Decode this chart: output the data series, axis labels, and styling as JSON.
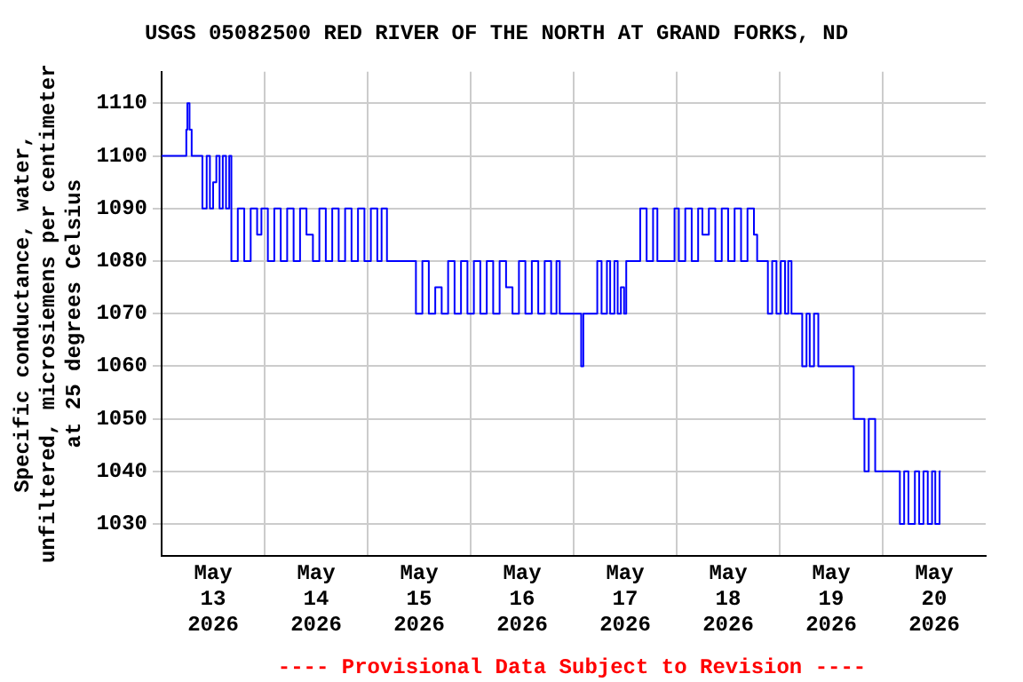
{
  "chart_data": {
    "type": "step",
    "title": "USGS 05082500 RED RIVER OF THE NORTH AT GRAND FORKS, ND",
    "ylabel": "Specific conductance, water,\nunfiltered, microsiemens per centimeter\nat 25 degrees Celsius",
    "annotations": [
      "---- Provisional Data Subject to Revision ----"
    ],
    "xlim": [
      "2026-05-13T00:00",
      "2026-05-21T00:00"
    ],
    "xticks": [
      {
        "value": "2026-05-13T12:00",
        "label": "May\n13\n2026"
      },
      {
        "value": "2026-05-14T00:00",
        "label": null
      },
      {
        "value": "2026-05-14T12:00",
        "label": "May\n14\n2026"
      },
      {
        "value": "2026-05-15T00:00",
        "label": null
      },
      {
        "value": "2026-05-15T12:00",
        "label": "May\n15\n2026"
      },
      {
        "value": "2026-05-16T00:00",
        "label": null
      },
      {
        "value": "2026-05-16T12:00",
        "label": "May\n16\n2026"
      },
      {
        "value": "2026-05-17T00:00",
        "label": null
      },
      {
        "value": "2026-05-17T12:00",
        "label": "May\n17\n2026"
      },
      {
        "value": "2026-05-18T00:00",
        "label": null
      },
      {
        "value": "2026-05-18T12:00",
        "label": "May\n18\n2026"
      },
      {
        "value": "2026-05-19T00:00",
        "label": null
      },
      {
        "value": "2026-05-19T12:00",
        "label": "May\n19\n2026"
      },
      {
        "value": "2026-05-20T00:00",
        "label": null
      },
      {
        "value": "2026-05-20T12:00",
        "label": "May\n20\n2026"
      }
    ],
    "ylim": [
      1024,
      1116
    ],
    "yticks": [
      1030,
      1040,
      1050,
      1060,
      1070,
      1080,
      1090,
      1100,
      1110
    ],
    "grid": true,
    "legend": false,
    "marker": "none",
    "line_style": "solid",
    "series": [
      {
        "color": "#0000ff",
        "x": [
          "2026-05-13T00:00",
          "2026-05-13T05:45",
          "2026-05-13T06:00",
          "2026-05-13T06:30",
          "2026-05-13T07:00",
          "2026-05-13T09:30",
          "2026-05-13T10:30",
          "2026-05-13T11:15",
          "2026-05-13T12:00",
          "2026-05-13T12:45",
          "2026-05-13T13:30",
          "2026-05-13T14:15",
          "2026-05-13T15:00",
          "2026-05-13T15:45",
          "2026-05-13T16:15",
          "2026-05-13T17:45",
          "2026-05-13T19:15",
          "2026-05-13T20:45",
          "2026-05-13T22:15",
          "2026-05-13T23:15",
          "2026-05-14T00:45",
          "2026-05-14T02:15",
          "2026-05-14T03:45",
          "2026-05-14T05:15",
          "2026-05-14T06:45",
          "2026-05-14T08:15",
          "2026-05-14T09:45",
          "2026-05-14T11:15",
          "2026-05-14T12:45",
          "2026-05-14T14:15",
          "2026-05-14T15:45",
          "2026-05-14T17:15",
          "2026-05-14T18:45",
          "2026-05-14T20:15",
          "2026-05-14T21:45",
          "2026-05-14T23:15",
          "2026-05-15T00:45",
          "2026-05-15T02:15",
          "2026-05-15T03:15",
          "2026-05-15T04:30",
          "2026-05-15T11:15",
          "2026-05-15T12:45",
          "2026-05-15T14:15",
          "2026-05-15T15:45",
          "2026-05-15T17:15",
          "2026-05-15T18:45",
          "2026-05-15T20:15",
          "2026-05-15T21:45",
          "2026-05-15T23:15",
          "2026-05-16T00:45",
          "2026-05-16T02:15",
          "2026-05-16T03:45",
          "2026-05-16T05:15",
          "2026-05-16T06:45",
          "2026-05-16T08:15",
          "2026-05-16T09:45",
          "2026-05-16T11:15",
          "2026-05-16T12:45",
          "2026-05-16T14:15",
          "2026-05-16T15:45",
          "2026-05-16T17:15",
          "2026-05-16T18:45",
          "2026-05-16T20:00",
          "2026-05-16T20:45",
          "2026-05-17T01:45",
          "2026-05-17T02:15",
          "2026-05-17T05:30",
          "2026-05-17T06:30",
          "2026-05-17T07:45",
          "2026-05-17T08:30",
          "2026-05-17T09:30",
          "2026-05-17T10:15",
          "2026-05-17T11:00",
          "2026-05-17T11:45",
          "2026-05-17T12:15",
          "2026-05-17T15:30",
          "2026-05-17T17:00",
          "2026-05-17T18:30",
          "2026-05-17T19:30",
          "2026-05-17T23:30",
          "2026-05-18T00:30",
          "2026-05-18T02:00",
          "2026-05-18T03:30",
          "2026-05-18T05:00",
          "2026-05-18T06:00",
          "2026-05-18T07:30",
          "2026-05-18T09:00",
          "2026-05-18T10:30",
          "2026-05-18T12:00",
          "2026-05-18T13:30",
          "2026-05-18T15:00",
          "2026-05-18T16:30",
          "2026-05-18T18:00",
          "2026-05-18T18:45",
          "2026-05-18T21:15",
          "2026-05-18T22:15",
          "2026-05-18T23:15",
          "2026-05-19T00:15",
          "2026-05-19T01:15",
          "2026-05-19T02:00",
          "2026-05-19T02:45",
          "2026-05-19T05:15",
          "2026-05-19T06:15",
          "2026-05-19T07:00",
          "2026-05-19T08:00",
          "2026-05-19T09:00",
          "2026-05-19T17:15",
          "2026-05-19T19:45",
          "2026-05-19T20:45",
          "2026-05-19T22:15",
          "2026-05-20T04:00",
          "2026-05-20T05:00",
          "2026-05-20T06:00",
          "2026-05-20T07:30",
          "2026-05-20T08:30",
          "2026-05-20T09:30",
          "2026-05-20T10:30",
          "2026-05-20T11:30",
          "2026-05-20T12:15",
          "2026-05-20T13:15",
          "2026-05-20T13:30"
        ],
        "values": [
          1100,
          1105,
          1110,
          1105,
          1100,
          1090,
          1100,
          1090,
          1095,
          1100,
          1090,
          1100,
          1090,
          1100,
          1080,
          1090,
          1080,
          1090,
          1085,
          1090,
          1080,
          1090,
          1080,
          1090,
          1080,
          1090,
          1085,
          1080,
          1090,
          1080,
          1090,
          1080,
          1090,
          1080,
          1090,
          1080,
          1090,
          1080,
          1090,
          1080,
          1070,
          1080,
          1070,
          1075,
          1070,
          1080,
          1070,
          1080,
          1070,
          1080,
          1070,
          1080,
          1070,
          1080,
          1075,
          1070,
          1080,
          1070,
          1080,
          1070,
          1080,
          1070,
          1080,
          1070,
          1060,
          1070,
          1080,
          1070,
          1080,
          1070,
          1080,
          1070,
          1075,
          1070,
          1080,
          1090,
          1080,
          1090,
          1080,
          1090,
          1080,
          1090,
          1080,
          1090,
          1085,
          1090,
          1080,
          1090,
          1080,
          1090,
          1080,
          1090,
          1085,
          1080,
          1070,
          1080,
          1070,
          1080,
          1070,
          1080,
          1070,
          1060,
          1070,
          1060,
          1070,
          1060,
          1050,
          1040,
          1050,
          1040,
          1030,
          1040,
          1030,
          1040,
          1030,
          1040,
          1030,
          1040,
          1030,
          1040,
          1040
        ]
      }
    ]
  }
}
